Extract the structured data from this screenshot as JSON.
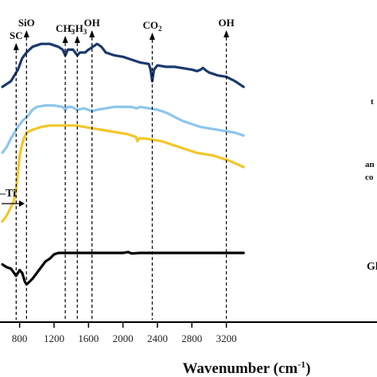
{
  "chart_data": {
    "type": "line",
    "xlabel": "Wavenumber (cm",
    "xlabel_superscript": "-1",
    "xlabel_suffix": ")",
    "xlim": [
      600,
      3400
    ],
    "x_ticks": [
      "800",
      "1200",
      "1600",
      "2000",
      "2400",
      "2800",
      "3200"
    ],
    "annotations": [
      {
        "label": "SC",
        "x": 760
      },
      {
        "label": "SiO",
        "x": 880
      },
      {
        "label": "CH3",
        "x": 1330
      },
      {
        "label": "CH3",
        "x": 1470
      },
      {
        "label": "OH",
        "x": 1640
      },
      {
        "label": "CO2",
        "x": 2340
      },
      {
        "label": "OH",
        "x": 3200
      }
    ],
    "side_labels": [
      "Gl",
      "an",
      "co",
      "t"
    ],
    "inset_label": "–Ti",
    "y_axis": "offset intensity (no tick labels)",
    "grid": false,
    "series": [
      {
        "color": "#1a3a6e",
        "points": [
          [
            600,
            0.78
          ],
          [
            700,
            0.8
          ],
          [
            780,
            0.84
          ],
          [
            830,
            0.88
          ],
          [
            880,
            0.9
          ],
          [
            950,
            0.92
          ],
          [
            1050,
            0.93
          ],
          [
            1150,
            0.93
          ],
          [
            1250,
            0.92
          ],
          [
            1300,
            0.91
          ],
          [
            1330,
            0.89
          ],
          [
            1360,
            0.91
          ],
          [
            1420,
            0.91
          ],
          [
            1470,
            0.89
          ],
          [
            1500,
            0.9
          ],
          [
            1560,
            0.9
          ],
          [
            1600,
            0.91
          ],
          [
            1700,
            0.93
          ],
          [
            1750,
            0.92
          ],
          [
            1800,
            0.9
          ],
          [
            1900,
            0.89
          ],
          [
            2000,
            0.885
          ],
          [
            2100,
            0.875
          ],
          [
            2200,
            0.865
          ],
          [
            2300,
            0.86
          ],
          [
            2320,
            0.84
          ],
          [
            2340,
            0.8
          ],
          [
            2360,
            0.84
          ],
          [
            2400,
            0.855
          ],
          [
            2500,
            0.85
          ],
          [
            2600,
            0.85
          ],
          [
            2700,
            0.845
          ],
          [
            2800,
            0.84
          ],
          [
            2860,
            0.835
          ],
          [
            2900,
            0.84
          ],
          [
            2930,
            0.846
          ],
          [
            2960,
            0.838
          ],
          [
            3000,
            0.83
          ],
          [
            3100,
            0.82
          ],
          [
            3200,
            0.815
          ],
          [
            3300,
            0.8
          ],
          [
            3400,
            0.78
          ]
        ]
      },
      {
        "color": "#8cc6ec",
        "points": [
          [
            600,
            0.55
          ],
          [
            650,
            0.57
          ],
          [
            700,
            0.6
          ],
          [
            780,
            0.64
          ],
          [
            830,
            0.66
          ],
          [
            900,
            0.68
          ],
          [
            950,
            0.7
          ],
          [
            1000,
            0.71
          ],
          [
            1100,
            0.715
          ],
          [
            1200,
            0.715
          ],
          [
            1300,
            0.71
          ],
          [
            1330,
            0.7
          ],
          [
            1360,
            0.71
          ],
          [
            1400,
            0.71
          ],
          [
            1470,
            0.7
          ],
          [
            1550,
            0.705
          ],
          [
            1640,
            0.695
          ],
          [
            1700,
            0.7
          ],
          [
            1800,
            0.705
          ],
          [
            1900,
            0.71
          ],
          [
            2000,
            0.71
          ],
          [
            2100,
            0.71
          ],
          [
            2160,
            0.705
          ],
          [
            2200,
            0.71
          ],
          [
            2300,
            0.705
          ],
          [
            2400,
            0.7
          ],
          [
            2500,
            0.69
          ],
          [
            2600,
            0.675
          ],
          [
            2700,
            0.66
          ],
          [
            2800,
            0.65
          ],
          [
            2900,
            0.64
          ],
          [
            3000,
            0.635
          ],
          [
            3100,
            0.63
          ],
          [
            3200,
            0.625
          ],
          [
            3300,
            0.62
          ],
          [
            3400,
            0.61
          ]
        ]
      },
      {
        "color": "#f2c629",
        "points": [
          [
            600,
            0.31
          ],
          [
            650,
            0.33
          ],
          [
            700,
            0.36
          ],
          [
            730,
            0.38
          ],
          [
            760,
            0.42
          ],
          [
            780,
            0.48
          ],
          [
            800,
            0.54
          ],
          [
            830,
            0.58
          ],
          [
            850,
            0.6
          ],
          [
            880,
            0.62
          ],
          [
            950,
            0.63
          ],
          [
            1050,
            0.64
          ],
          [
            1150,
            0.645
          ],
          [
            1250,
            0.645
          ],
          [
            1350,
            0.645
          ],
          [
            1450,
            0.645
          ],
          [
            1550,
            0.64
          ],
          [
            1650,
            0.635
          ],
          [
            1750,
            0.63
          ],
          [
            1850,
            0.625
          ],
          [
            1950,
            0.62
          ],
          [
            2050,
            0.615
          ],
          [
            2150,
            0.605
          ],
          [
            2170,
            0.59
          ],
          [
            2190,
            0.6
          ],
          [
            2250,
            0.6
          ],
          [
            2350,
            0.595
          ],
          [
            2450,
            0.59
          ],
          [
            2550,
            0.58
          ],
          [
            2650,
            0.57
          ],
          [
            2750,
            0.56
          ],
          [
            2850,
            0.55
          ],
          [
            2950,
            0.545
          ],
          [
            3050,
            0.54
          ],
          [
            3150,
            0.53
          ],
          [
            3250,
            0.52
          ],
          [
            3400,
            0.5
          ]
        ]
      },
      {
        "color": "#000000",
        "points": [
          [
            600,
            0.16
          ],
          [
            650,
            0.15
          ],
          [
            700,
            0.145
          ],
          [
            760,
            0.12
          ],
          [
            800,
            0.14
          ],
          [
            830,
            0.13
          ],
          [
            860,
            0.1
          ],
          [
            880,
            0.09
          ],
          [
            900,
            0.095
          ],
          [
            950,
            0.11
          ],
          [
            1000,
            0.13
          ],
          [
            1050,
            0.15
          ],
          [
            1100,
            0.17
          ],
          [
            1150,
            0.18
          ],
          [
            1200,
            0.195
          ],
          [
            1250,
            0.2
          ],
          [
            1300,
            0.2
          ],
          [
            1400,
            0.2
          ],
          [
            1500,
            0.2
          ],
          [
            1600,
            0.2
          ],
          [
            1700,
            0.2
          ],
          [
            1800,
            0.2
          ],
          [
            1900,
            0.2
          ],
          [
            2000,
            0.2
          ],
          [
            2060,
            0.203
          ],
          [
            2100,
            0.198
          ],
          [
            2200,
            0.2
          ],
          [
            2300,
            0.2
          ],
          [
            2400,
            0.2
          ],
          [
            2500,
            0.2
          ],
          [
            2600,
            0.2
          ],
          [
            2700,
            0.2
          ],
          [
            2800,
            0.2
          ],
          [
            2900,
            0.2
          ],
          [
            3000,
            0.2
          ],
          [
            3100,
            0.2
          ],
          [
            3200,
            0.2
          ],
          [
            3300,
            0.2
          ],
          [
            3400,
            0.2
          ]
        ]
      }
    ]
  }
}
